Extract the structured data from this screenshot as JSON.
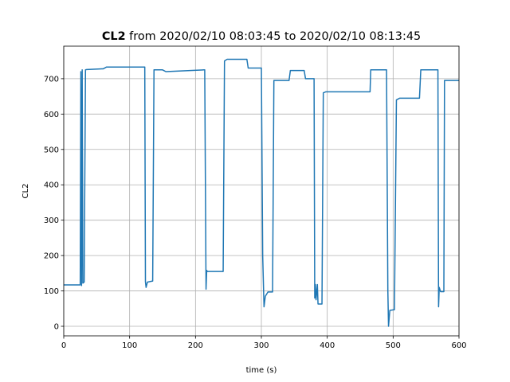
{
  "chart_data": {
    "type": "line",
    "title": {
      "bold": "CL2",
      "rest": "from 2020/02/10 08:03:45 to 2020/02/10 08:13:45"
    },
    "xlabel": "time (s)",
    "ylabel": "CL2",
    "xlim": [
      0,
      600
    ],
    "ylim": [
      -27,
      792
    ],
    "xticks": [
      0,
      100,
      200,
      300,
      400,
      500,
      600
    ],
    "yticks": [
      0,
      100,
      200,
      300,
      400,
      500,
      600,
      700
    ],
    "grid": true,
    "color": "#1f77b4",
    "x": [
      0,
      25,
      26,
      27,
      28,
      29,
      31,
      33,
      35,
      60,
      65,
      123,
      124,
      125,
      127,
      135,
      137,
      150,
      155,
      213,
      214,
      216,
      217,
      218,
      242,
      244,
      248,
      278,
      280,
      300,
      302,
      304,
      306,
      310,
      317,
      319,
      342,
      344,
      365,
      367,
      380,
      381,
      382,
      383,
      385,
      386,
      392,
      394,
      398,
      465,
      466,
      490,
      492,
      493,
      495,
      502,
      505,
      510,
      540,
      542,
      568,
      569,
      570,
      572,
      577,
      578,
      600
    ],
    "values": [
      117,
      117,
      720,
      115,
      725,
      122,
      125,
      725,
      726,
      728,
      733,
      733,
      126,
      110,
      125,
      128,
      725,
      725,
      720,
      725,
      725,
      105,
      158,
      155,
      155,
      750,
      755,
      755,
      730,
      730,
      200,
      55,
      85,
      97,
      97,
      695,
      695,
      723,
      723,
      700,
      700,
      80,
      118,
      75,
      118,
      63,
      63,
      660,
      663,
      663,
      725,
      725,
      100,
      0,
      45,
      47,
      640,
      645,
      645,
      725,
      725,
      55,
      110,
      98,
      98,
      695,
      695
    ]
  }
}
